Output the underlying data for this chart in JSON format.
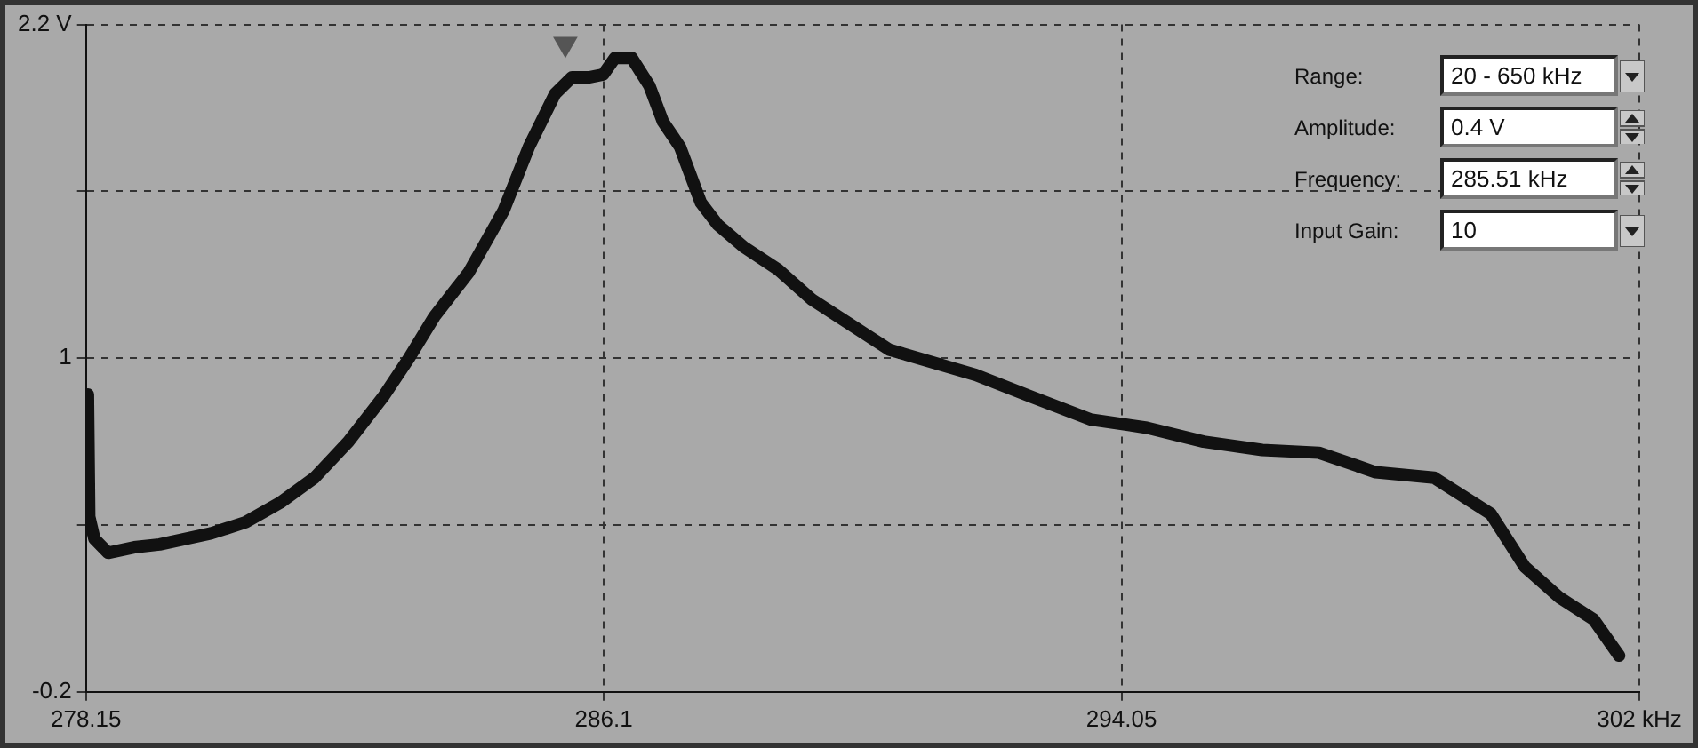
{
  "chart_data": {
    "type": "line",
    "x": [
      278.17,
      278.18,
      278.2,
      278.28,
      278.49,
      278.89,
      279.28,
      280.07,
      280.6,
      281.13,
      281.66,
      282.18,
      282.71,
      283.11,
      283.5,
      284.03,
      284.56,
      284.95,
      285.35,
      285.61,
      285.87,
      286.09,
      286.27,
      286.53,
      286.8,
      287.01,
      287.27,
      287.59,
      287.85,
      288.25,
      288.77,
      289.3,
      290.49,
      291.81,
      292.68,
      293.57,
      294.44,
      295.31,
      296.21,
      297.08,
      297.95,
      298.85,
      299.72,
      300.24,
      300.77,
      301.3,
      301.69
    ],
    "series": [
      {
        "color": "#111111",
        "values": [
          0.44,
          0.87,
          0.43,
          0.35,
          0.3,
          0.32,
          0.33,
          0.37,
          0.41,
          0.48,
          0.57,
          0.7,
          0.86,
          1.0,
          1.15,
          1.31,
          1.53,
          1.76,
          1.95,
          2.01,
          2.01,
          2.02,
          2.08,
          2.08,
          1.98,
          1.85,
          1.76,
          1.56,
          1.48,
          1.4,
          1.32,
          1.21,
          1.03,
          0.94,
          0.86,
          0.78,
          0.75,
          0.7,
          0.67,
          0.66,
          0.59,
          0.57,
          0.44,
          0.25,
          0.14,
          0.06,
          -0.07
        ]
      },
      {
        "type": "scatter",
        "marker": "triangle",
        "color": "#555555",
        "x": [
          285.51
        ],
        "values": [
          2.13
        ]
      }
    ],
    "xlim": [
      278.15,
      302
    ],
    "xticks": [
      278.15,
      286.1,
      294.05,
      {
        "value": 302,
        "label": "302 kHz"
      }
    ],
    "ylim": [
      -0.2,
      2.2
    ],
    "yticks": [
      -0.2,
      {
        "value": 0.4,
        "label": null
      },
      1,
      {
        "value": 1.6,
        "label": null
      },
      {
        "value": 2.2,
        "label": "2.2 V"
      }
    ],
    "grid": true,
    "legend": false,
    "marker": "none",
    "line_style": "solid",
    "annotations": [
      "Range:",
      "20 - 650 kHz",
      "Amplitude:",
      "0.4 V",
      "Frequency:",
      "285.51 kHz",
      "Input Gain:",
      "10"
    ]
  }
}
